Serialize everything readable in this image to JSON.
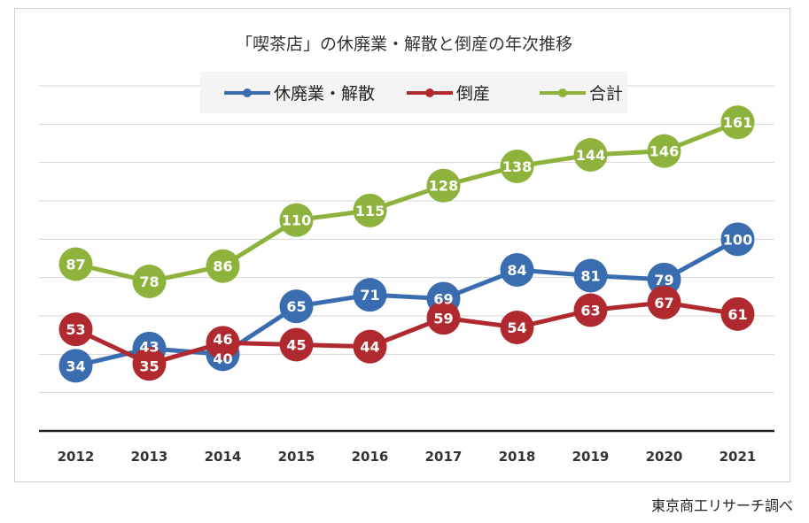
{
  "chart_data": {
    "type": "line",
    "title": "「喫茶店」の休廃業・解散と倒産の年次推移",
    "categories": [
      "2012",
      "2013",
      "2014",
      "2015",
      "2016",
      "2017",
      "2018",
      "2019",
      "2020",
      "2021"
    ],
    "series": [
      {
        "name": "休廃業・解散",
        "color": "#3a6cb0",
        "values": [
          34,
          43,
          40,
          65,
          71,
          69,
          84,
          81,
          79,
          100
        ]
      },
      {
        "name": "倒産",
        "color": "#b0292f",
        "values": [
          53,
          35,
          46,
          45,
          44,
          59,
          54,
          63,
          67,
          61
        ]
      },
      {
        "name": "合計",
        "color": "#8db33c",
        "values": [
          87,
          78,
          86,
          110,
          115,
          128,
          138,
          144,
          146,
          161
        ]
      }
    ],
    "ylim": [
      0,
      180
    ],
    "ytick_step": 20,
    "grid": true,
    "legend": "top-center",
    "xlabel": "",
    "ylabel": ""
  },
  "source": "東京商工リサーチ調べ"
}
